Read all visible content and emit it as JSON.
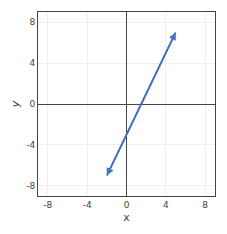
{
  "chart_data": {
    "type": "line",
    "x": [
      -2,
      5
    ],
    "values": [
      -7,
      7
    ],
    "color": "#4472c4",
    "xlabel": "x",
    "ylabel": "y",
    "xlim": [
      -9,
      9
    ],
    "ylim": [
      -9,
      9
    ],
    "xticks": [
      -8,
      -4,
      0,
      4,
      8
    ],
    "yticks": [
      -8,
      -4,
      0,
      4,
      8
    ],
    "grid": true
  }
}
